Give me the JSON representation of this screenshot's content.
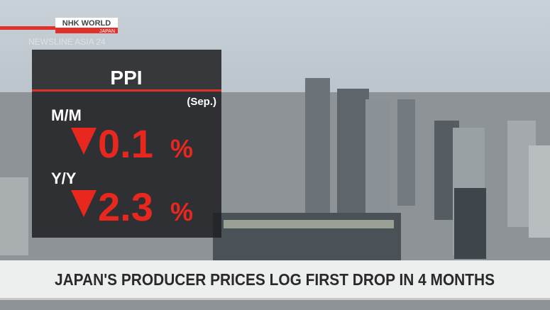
{
  "logo": {
    "brand": "NHK WORLD",
    "sub": "JAPAN"
  },
  "program": "NEWSLINE ASIA 24",
  "panel": {
    "title": "PPI",
    "period": "(Sep.)",
    "rows": [
      {
        "label": "M/M",
        "value": "0.1",
        "unit": "%"
      },
      {
        "label": "Y/Y",
        "value": "2.3",
        "unit": "%"
      }
    ]
  },
  "headline": "JAPAN'S PRODUCER PRICES LOG FIRST DROP IN 4 MONTHS"
}
